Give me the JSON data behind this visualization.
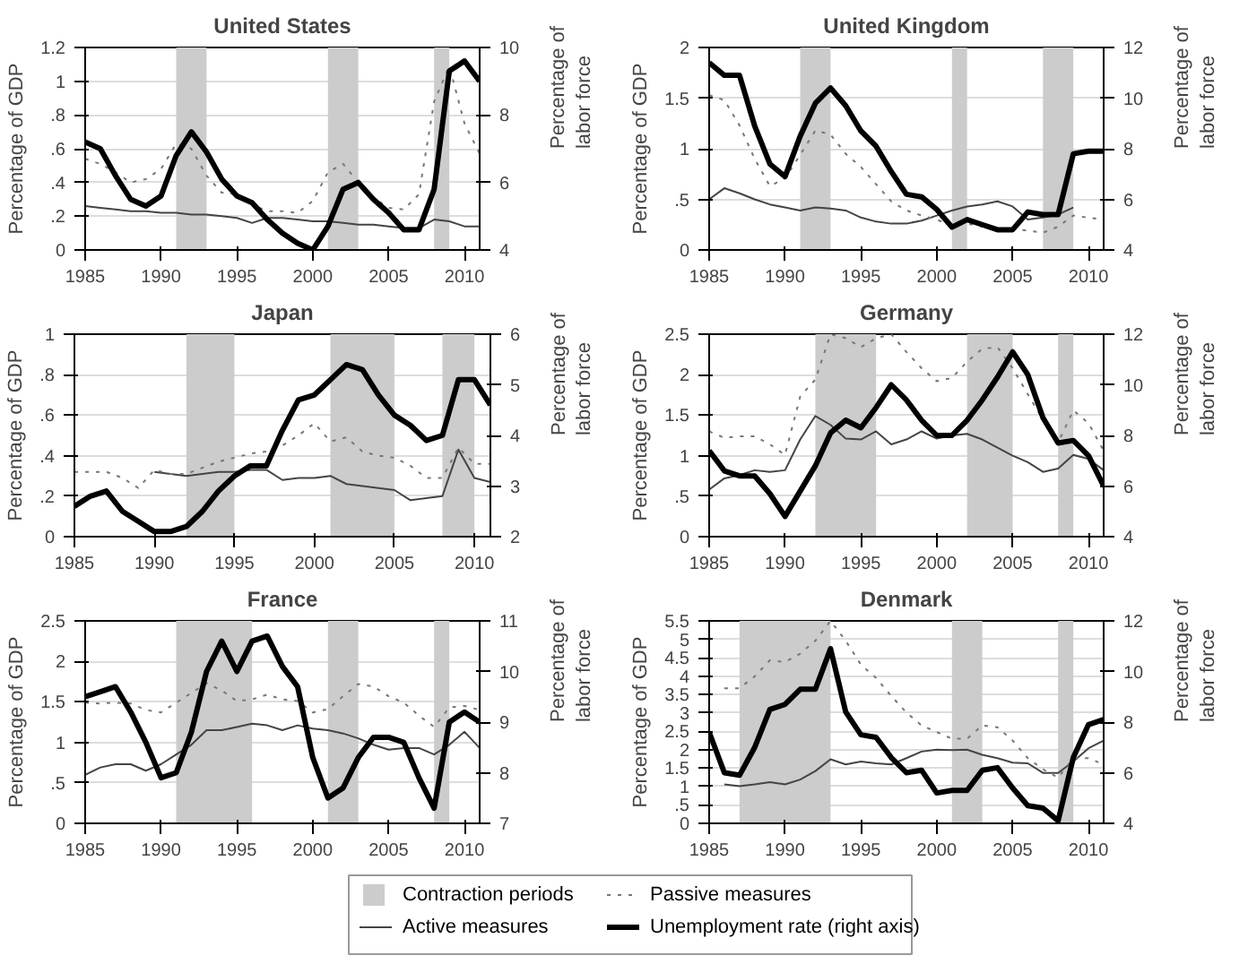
{
  "chart_data": [
    {
      "type": "line",
      "title": "United States",
      "ylabel": "Percentage of GDP",
      "y2label": "Percentage of labor force",
      "x": [
        1985,
        1986,
        1987,
        1988,
        1989,
        1990,
        1991,
        1992,
        1993,
        1994,
        1995,
        1996,
        1997,
        1998,
        1999,
        2000,
        2001,
        2002,
        2003,
        2004,
        2005,
        2006,
        2007,
        2008,
        2009,
        2010,
        2011
      ],
      "xlim": [
        1985,
        2011
      ],
      "xticks": [
        1985,
        1990,
        1995,
        2000,
        2005,
        2010
      ],
      "ylim": [
        0,
        1.2
      ],
      "yticks": [
        0,
        {
          "value": 0.2,
          "label": ".2"
        },
        {
          "value": 0.4,
          "label": ".4"
        },
        {
          "value": 0.6,
          "label": ".6"
        },
        {
          "value": 0.8,
          "label": ".8"
        },
        1,
        1.2
      ],
      "y2lim": [
        4,
        10
      ],
      "y2ticks": [
        4,
        6,
        8,
        10
      ],
      "grid": "y",
      "legend": false,
      "bands": [
        {
          "axis": "x",
          "from": 1991,
          "to": 1993,
          "color": "#cccccc"
        },
        {
          "axis": "x",
          "from": 2001,
          "to": 2003,
          "color": "#cccccc"
        },
        {
          "axis": "x",
          "from": 2008,
          "to": 2009,
          "color": "#cccccc"
        }
      ],
      "series": [
        {
          "color": "#444444",
          "line_style": "solid",
          "values": [
            0.26,
            0.25,
            0.24,
            0.23,
            0.23,
            0.22,
            0.22,
            0.21,
            0.21,
            0.2,
            0.19,
            0.16,
            0.19,
            0.19,
            0.18,
            0.17,
            0.17,
            0.16,
            0.15,
            0.15,
            0.14,
            0.13,
            0.13,
            0.18,
            0.17,
            0.14,
            0.14
          ]
        },
        {
          "color": "#777777",
          "line_style": "dotted",
          "values": [
            0.54,
            0.51,
            0.46,
            0.4,
            0.42,
            0.48,
            0.63,
            0.6,
            0.44,
            0.34,
            0.33,
            0.27,
            0.23,
            0.23,
            0.22,
            0.29,
            0.46,
            0.51,
            0.4,
            0.31,
            0.25,
            0.24,
            0.33,
            0.88,
            1.09,
            0.75,
            0.57
          ]
        },
        {
          "color": "#000000",
          "line_style": "solid",
          "axis": "y2",
          "values": [
            7.2,
            7.0,
            6.2,
            5.5,
            5.3,
            5.6,
            6.8,
            7.5,
            6.9,
            6.1,
            5.6,
            5.4,
            4.9,
            4.5,
            4.2,
            4.0,
            4.7,
            5.8,
            6.0,
            5.5,
            5.1,
            4.6,
            4.6,
            5.8,
            9.3,
            9.6,
            9.0
          ]
        }
      ]
    },
    {
      "type": "line",
      "title": "United Kingdom",
      "ylabel": "Percentage of GDP",
      "y2label": "Percentage of labor force",
      "x": [
        1985,
        1986,
        1987,
        1988,
        1989,
        1990,
        1991,
        1992,
        1993,
        1994,
        1995,
        1996,
        1997,
        1998,
        1999,
        2000,
        2001,
        2002,
        2003,
        2004,
        2005,
        2006,
        2007,
        2008,
        2009,
        2010,
        2011
      ],
      "xlim": [
        1985,
        2011
      ],
      "xticks": [
        1985,
        1990,
        1995,
        2000,
        2005,
        2010
      ],
      "ylim": [
        0,
        2
      ],
      "yticks": [
        0,
        {
          "value": 0.5,
          "label": ".5"
        },
        1,
        1.5,
        2
      ],
      "y2lim": [
        4,
        12
      ],
      "y2ticks": [
        4,
        6,
        8,
        10,
        12
      ],
      "grid": "y",
      "legend": false,
      "bands": [
        {
          "axis": "x",
          "from": 1991,
          "to": 1993,
          "color": "#cccccc"
        },
        {
          "axis": "x",
          "from": 2001,
          "to": 2002,
          "color": "#cccccc"
        },
        {
          "axis": "x",
          "from": 2007,
          "to": 2009,
          "color": "#cccccc"
        }
      ],
      "series": [
        {
          "color": "#444444",
          "line_style": "solid",
          "values": [
            0.5,
            0.61,
            0.56,
            0.5,
            0.45,
            0.42,
            0.39,
            0.42,
            0.41,
            0.39,
            0.32,
            0.28,
            0.26,
            0.26,
            0.29,
            0.34,
            0.39,
            0.43,
            0.45,
            0.48,
            0.43,
            0.3,
            0.32,
            0.35,
            0.42,
            null,
            null
          ]
        },
        {
          "color": "#777777",
          "line_style": "dotted",
          "values": [
            1.53,
            1.48,
            1.23,
            0.9,
            0.63,
            0.71,
            0.94,
            1.18,
            1.14,
            0.95,
            0.82,
            0.65,
            0.48,
            0.39,
            0.34,
            0.3,
            0.24,
            0.26,
            0.23,
            0.21,
            0.21,
            0.19,
            0.17,
            0.23,
            0.34,
            0.32,
            0.3
          ]
        },
        {
          "color": "#000000",
          "line_style": "solid",
          "axis": "y2",
          "values": [
            11.4,
            10.9,
            10.9,
            8.9,
            7.4,
            6.9,
            8.5,
            9.8,
            10.4,
            9.7,
            8.7,
            8.1,
            7.1,
            6.2,
            6.1,
            5.6,
            4.9,
            5.2,
            5.0,
            4.8,
            4.8,
            5.5,
            5.4,
            5.4,
            7.8,
            7.9,
            7.9
          ]
        }
      ]
    },
    {
      "type": "line",
      "title": "Japan",
      "ylabel": "Percentage of GDP",
      "y2label": "Percentage of labor force",
      "x": [
        1985,
        1986,
        1987,
        1988,
        1989,
        1990,
        1991,
        1992,
        1993,
        1994,
        1995,
        1996,
        1997,
        1998,
        1999,
        2000,
        2001,
        2002,
        2003,
        2004,
        2005,
        2006,
        2007,
        2008,
        2009,
        2010,
        2011
      ],
      "xlim": [
        1985,
        2011
      ],
      "xticks": [
        1985,
        1990,
        1995,
        2000,
        2005,
        2010
      ],
      "ylim": [
        0,
        1
      ],
      "yticks": [
        0,
        {
          "value": 0.2,
          "label": ".2"
        },
        {
          "value": 0.4,
          "label": ".4"
        },
        {
          "value": 0.6,
          "label": ".6"
        },
        {
          "value": 0.8,
          "label": ".8"
        },
        1
      ],
      "y2lim": [
        2,
        6
      ],
      "y2ticks": [
        2,
        3,
        4,
        5,
        6
      ],
      "grid": "y",
      "legend": false,
      "bands": [
        {
          "axis": "x",
          "from": 1992,
          "to": 1995,
          "color": "#cccccc"
        },
        {
          "axis": "x",
          "from": 2001,
          "to": 2005,
          "color": "#cccccc"
        },
        {
          "axis": "x",
          "from": 2008,
          "to": 2010,
          "color": "#cccccc"
        }
      ],
      "series": [
        {
          "color": "#444444",
          "line_style": "solid",
          "values": [
            null,
            null,
            null,
            null,
            null,
            0.32,
            0.31,
            0.3,
            0.31,
            0.32,
            0.32,
            0.33,
            0.33,
            0.28,
            0.29,
            0.29,
            0.3,
            0.26,
            0.25,
            0.24,
            0.23,
            0.18,
            0.19,
            0.2,
            0.43,
            0.29,
            0.27
          ]
        },
        {
          "color": "#777777",
          "line_style": "dotted",
          "values": [
            0.32,
            0.32,
            0.32,
            0.29,
            0.24,
            0.33,
            0.31,
            0.31,
            0.34,
            0.37,
            0.39,
            0.41,
            0.42,
            0.45,
            0.5,
            0.56,
            0.47,
            0.49,
            0.42,
            0.4,
            0.39,
            0.35,
            0.29,
            0.29,
            0.44,
            0.36,
            0.36
          ]
        },
        {
          "color": "#000000",
          "line_style": "solid",
          "axis": "y2",
          "values": [
            2.6,
            2.8,
            2.9,
            2.5,
            2.3,
            2.1,
            2.1,
            2.2,
            2.5,
            2.9,
            3.2,
            3.4,
            3.4,
            4.1,
            4.7,
            4.8,
            5.1,
            5.4,
            5.3,
            4.8,
            4.4,
            4.2,
            3.9,
            4.0,
            5.1,
            5.1,
            4.6
          ]
        }
      ]
    },
    {
      "type": "line",
      "title": "Germany",
      "ylabel": "Percentage of GDP",
      "y2label": "Percentage of labor force",
      "x": [
        1985,
        1986,
        1987,
        1988,
        1989,
        1990,
        1991,
        1992,
        1993,
        1994,
        1995,
        1996,
        1997,
        1998,
        1999,
        2000,
        2001,
        2002,
        2003,
        2004,
        2005,
        2006,
        2007,
        2008,
        2009,
        2010,
        2011
      ],
      "xlim": [
        1985,
        2011
      ],
      "xticks": [
        1985,
        1990,
        1995,
        2000,
        2005,
        2010
      ],
      "ylim": [
        0,
        2.5
      ],
      "yticks": [
        0,
        {
          "value": 0.5,
          "label": ".5"
        },
        1,
        1.5,
        2,
        2.5
      ],
      "y2lim": [
        4,
        12
      ],
      "y2ticks": [
        4,
        6,
        8,
        10,
        12
      ],
      "grid": "y",
      "legend": false,
      "bands": [
        {
          "axis": "x",
          "from": 1992,
          "to": 1996,
          "color": "#cccccc"
        },
        {
          "axis": "x",
          "from": 2002,
          "to": 2005,
          "color": "#cccccc"
        },
        {
          "axis": "x",
          "from": 2008,
          "to": 2009,
          "color": "#cccccc"
        }
      ],
      "series": [
        {
          "color": "#444444",
          "line_style": "solid",
          "values": [
            0.58,
            0.72,
            0.76,
            0.82,
            0.8,
            0.82,
            1.2,
            1.49,
            1.38,
            1.21,
            1.2,
            1.3,
            1.14,
            1.2,
            1.3,
            1.21,
            1.25,
            1.27,
            1.2,
            1.1,
            1.0,
            0.92,
            0.8,
            0.84,
            1.01,
            0.96,
            0.82
          ]
        },
        {
          "color": "#777777",
          "line_style": "dotted",
          "values": [
            1.3,
            1.22,
            1.24,
            1.24,
            1.14,
            1.01,
            1.73,
            1.94,
            2.5,
            2.45,
            2.34,
            2.45,
            2.5,
            2.28,
            2.08,
            1.92,
            1.96,
            2.16,
            2.32,
            2.34,
            2.08,
            1.76,
            1.44,
            1.16,
            1.56,
            1.4,
            1.06
          ]
        },
        {
          "color": "#000000",
          "line_style": "solid",
          "axis": "y2",
          "values": [
            7.4,
            6.6,
            6.4,
            6.4,
            5.7,
            4.8,
            5.8,
            6.8,
            8.1,
            8.6,
            8.3,
            9.1,
            10.0,
            9.4,
            8.6,
            8.0,
            8.0,
            8.6,
            9.4,
            10.3,
            11.3,
            10.4,
            8.7,
            7.7,
            7.8,
            7.2,
            6.0
          ]
        }
      ]
    },
    {
      "type": "line",
      "title": "France",
      "ylabel": "Percentage of GDP",
      "y2label": "Percentage of labor force",
      "x": [
        1985,
        1986,
        1987,
        1988,
        1989,
        1990,
        1991,
        1992,
        1993,
        1994,
        1995,
        1996,
        1997,
        1998,
        1999,
        2000,
        2001,
        2002,
        2003,
        2004,
        2005,
        2006,
        2007,
        2008,
        2009,
        2010,
        2011
      ],
      "xlim": [
        1985,
        2011
      ],
      "xticks": [
        1985,
        1990,
        1995,
        2000,
        2005,
        2010
      ],
      "ylim": [
        0,
        2.5
      ],
      "yticks": [
        0,
        {
          "value": 0.5,
          "label": ".5"
        },
        1,
        1.5,
        2,
        2.5
      ],
      "y2lim": [
        7,
        11
      ],
      "y2ticks": [
        7,
        8,
        9,
        10,
        11
      ],
      "grid": "y",
      "legend": false,
      "bands": [
        {
          "axis": "x",
          "from": 1991,
          "to": 1996,
          "color": "#cccccc"
        },
        {
          "axis": "x",
          "from": 2001,
          "to": 2003,
          "color": "#cccccc"
        },
        {
          "axis": "x",
          "from": 2008,
          "to": 2009,
          "color": "#cccccc"
        }
      ],
      "series": [
        {
          "color": "#444444",
          "line_style": "solid",
          "values": [
            0.6,
            0.69,
            0.73,
            0.73,
            0.65,
            0.73,
            0.85,
            0.97,
            1.15,
            1.15,
            1.19,
            1.23,
            1.21,
            1.15,
            1.21,
            1.17,
            1.15,
            1.11,
            1.05,
            0.97,
            0.91,
            0.93,
            0.93,
            0.85,
            0.97,
            1.13,
            0.93
          ]
        },
        {
          "color": "#777777",
          "line_style": "dotted",
          "values": [
            1.49,
            1.48,
            1.49,
            1.48,
            1.4,
            1.37,
            1.49,
            1.61,
            1.73,
            1.64,
            1.51,
            1.53,
            1.59,
            1.53,
            1.51,
            1.37,
            1.41,
            1.57,
            1.72,
            1.69,
            1.57,
            1.49,
            1.33,
            1.19,
            1.43,
            1.45,
            1.4
          ]
        },
        {
          "color": "#000000",
          "line_style": "solid",
          "axis": "y2",
          "values": [
            9.5,
            9.6,
            9.7,
            9.2,
            8.6,
            7.9,
            8.0,
            8.8,
            10.0,
            10.6,
            10.0,
            10.6,
            10.7,
            10.1,
            9.7,
            8.3,
            7.5,
            7.7,
            8.3,
            8.7,
            8.7,
            8.6,
            7.9,
            7.3,
            9.0,
            9.2,
            9.0
          ]
        }
      ]
    },
    {
      "type": "line",
      "title": "Denmark",
      "ylabel": "Percentage of GDP",
      "y2label": "Percentage of labor force",
      "x": [
        1985,
        1986,
        1987,
        1988,
        1989,
        1990,
        1991,
        1992,
        1993,
        1994,
        1995,
        1996,
        1997,
        1998,
        1999,
        2000,
        2001,
        2002,
        2003,
        2004,
        2005,
        2006,
        2007,
        2008,
        2009,
        2010,
        2011
      ],
      "xlim": [
        1985,
        2011
      ],
      "xticks": [
        1985,
        1990,
        1995,
        2000,
        2005,
        2010
      ],
      "ylim": [
        0,
        5.5
      ],
      "yticks": [
        0,
        {
          "value": 0.5,
          "label": ".5"
        },
        1,
        1.5,
        2,
        2.5,
        3,
        3.5,
        4,
        4.5,
        5,
        5.5
      ],
      "y2lim": [
        4,
        12
      ],
      "y2ticks": [
        4,
        6,
        8,
        10,
        12
      ],
      "grid": "y",
      "legend": "bottom",
      "bands": [
        {
          "axis": "x",
          "from": 1987,
          "to": 1993,
          "color": "#cccccc",
          "label": "Contraction periods"
        },
        {
          "axis": "x",
          "from": 2001,
          "to": 2003,
          "color": "#cccccc"
        },
        {
          "axis": "x",
          "from": 2008,
          "to": 2009,
          "color": "#cccccc"
        }
      ],
      "series": [
        {
          "name": "Active measures",
          "color": "#444444",
          "line_style": "solid",
          "values": [
            null,
            1.06,
            1.01,
            1.06,
            1.12,
            1.06,
            1.19,
            1.42,
            1.74,
            1.6,
            1.68,
            1.63,
            1.6,
            1.77,
            1.95,
            2.0,
            1.99,
            2.0,
            1.86,
            1.77,
            1.65,
            1.63,
            1.37,
            1.37,
            1.68,
            2.04,
            2.25
          ]
        },
        {
          "name": "Passive measures",
          "color": "#777777",
          "line_style": "dotted",
          "values": [
            null,
            3.67,
            3.67,
            3.99,
            4.43,
            4.38,
            4.61,
            4.96,
            5.5,
            4.96,
            4.31,
            3.95,
            3.46,
            3.01,
            2.66,
            2.48,
            2.3,
            2.3,
            2.66,
            2.61,
            2.25,
            1.77,
            1.47,
            1.24,
            1.77,
            1.77,
            1.6
          ]
        },
        {
          "name": "Unemployment rate (right axis)",
          "color": "#000000",
          "line_style": "solid",
          "axis": "y2",
          "values": [
            7.6,
            6.0,
            5.9,
            7.0,
            8.5,
            8.7,
            9.3,
            9.3,
            10.9,
            8.4,
            7.5,
            7.4,
            6.6,
            6.0,
            6.1,
            5.2,
            5.3,
            5.3,
            6.1,
            6.2,
            5.4,
            4.7,
            4.6,
            4.1,
            6.6,
            7.9,
            8.1
          ]
        }
      ]
    }
  ]
}
